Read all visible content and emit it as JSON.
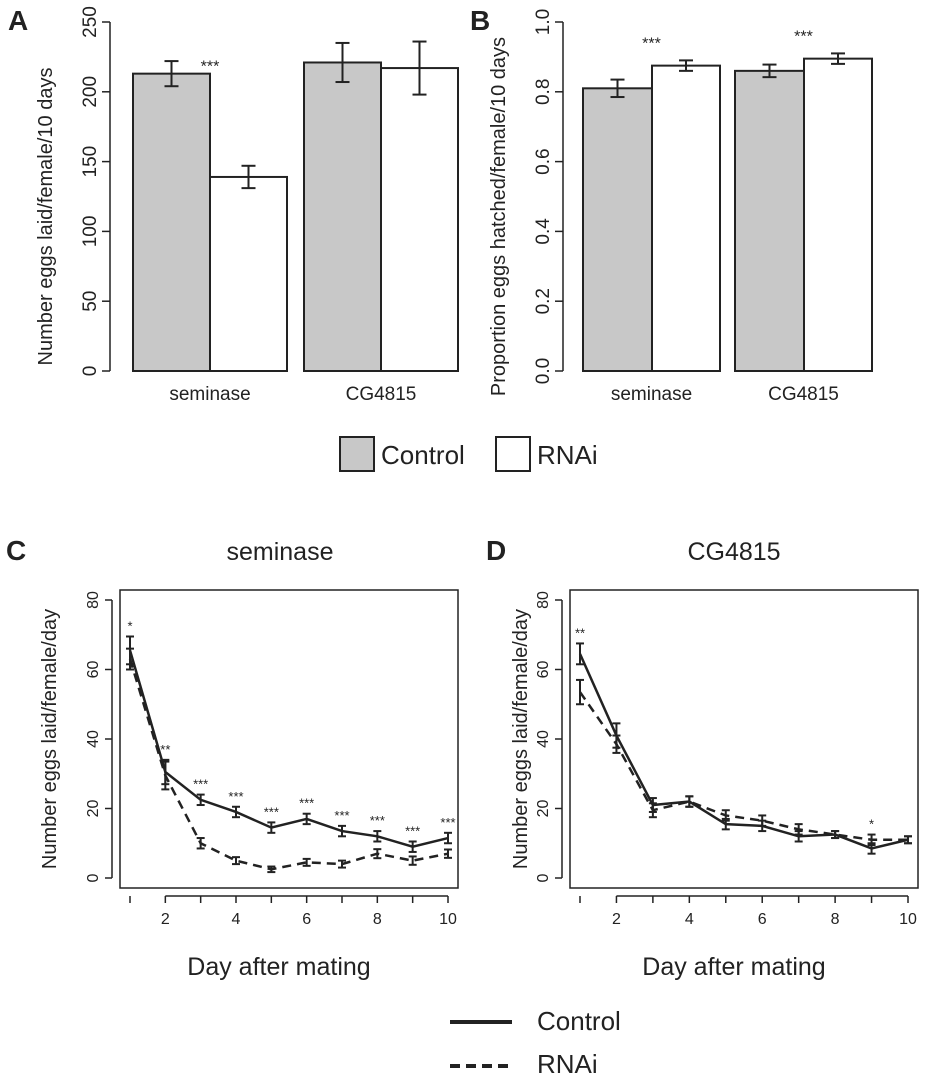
{
  "chart_data": [
    {
      "panel": "A",
      "type": "bar",
      "title": "",
      "xlabel": "",
      "ylabel": "Number eggs laid/female/10 days",
      "ylim": [
        0,
        250
      ],
      "yticks": [
        "0",
        "50",
        "100",
        "150",
        "200",
        "250"
      ],
      "categories": [
        "seminase",
        "CG4815"
      ],
      "series": [
        {
          "name": "Control",
          "values": [
            213,
            221
          ],
          "errors": [
            9,
            14
          ]
        },
        {
          "name": "RNAi",
          "values": [
            139,
            217
          ],
          "errors": [
            8,
            19
          ]
        }
      ],
      "annotations": [
        {
          "category": "seminase",
          "text": "***"
        }
      ]
    },
    {
      "panel": "B",
      "type": "bar",
      "title": "",
      "xlabel": "",
      "ylabel": "Proportion eggs hatched/female/10 days",
      "ylim": [
        0,
        1.0
      ],
      "yticks": [
        "0.0",
        "0.2",
        "0.4",
        "0.6",
        "0.8",
        "1.0"
      ],
      "categories": [
        "seminase",
        "CG4815"
      ],
      "series": [
        {
          "name": "Control",
          "values": [
            0.81,
            0.86
          ],
          "errors": [
            0.025,
            0.018
          ]
        },
        {
          "name": "RNAi",
          "values": [
            0.875,
            0.895
          ],
          "errors": [
            0.015,
            0.015
          ]
        }
      ],
      "annotations": [
        {
          "category": "seminase",
          "text": "***"
        },
        {
          "category": "CG4815",
          "text": "***"
        }
      ]
    },
    {
      "panel": "C",
      "type": "line",
      "title": "seminase",
      "xlabel": "Day after mating",
      "ylabel": "Number eggs laid/female/day",
      "xlim": [
        1,
        10
      ],
      "ylim": [
        0,
        80
      ],
      "xticks": [
        "2",
        "4",
        "6",
        "8",
        "10"
      ],
      "yticks": [
        "0",
        "20",
        "40",
        "60",
        "80"
      ],
      "x": [
        1,
        2,
        3,
        4,
        5,
        6,
        7,
        8,
        9,
        10
      ],
      "series": [
        {
          "name": "Control",
          "style": "solid",
          "values": [
            65.5,
            30.5,
            22.5,
            19,
            14.5,
            17,
            13.5,
            12,
            9,
            11.5
          ],
          "errors": [
            4,
            3.5,
            1.5,
            1.5,
            1.5,
            1.5,
            1.5,
            1.5,
            1.5,
            1.5
          ]
        },
        {
          "name": "RNAi",
          "style": "dashed",
          "values": [
            63,
            29.5,
            10,
            5,
            2.5,
            4.5,
            4,
            7,
            5,
            7
          ],
          "errors": [
            3,
            4,
            1.5,
            1,
            0.8,
            1,
            1,
            1.3,
            1.2,
            1.2
          ]
        }
      ],
      "annotations": [
        "*",
        "**",
        "***",
        "***",
        "***",
        "***",
        "***",
        "***",
        "***",
        "***"
      ]
    },
    {
      "panel": "D",
      "type": "line",
      "title": "CG4815",
      "xlabel": "Day after mating",
      "ylabel": "Number eggs laid/female/day",
      "xlim": [
        1,
        10
      ],
      "ylim": [
        0,
        80
      ],
      "xticks": [
        "2",
        "4",
        "6",
        "8",
        "10"
      ],
      "yticks": [
        "0",
        "20",
        "40",
        "60",
        "80"
      ],
      "x": [
        1,
        2,
        3,
        4,
        5,
        6,
        7,
        8,
        9,
        10
      ],
      "series": [
        {
          "name": "Control",
          "style": "solid",
          "values": [
            64.5,
            41,
            21,
            22,
            15.5,
            15,
            12,
            12.5,
            8.5,
            11
          ],
          "errors": [
            3,
            3.5,
            2,
            1.5,
            1.5,
            1.5,
            1.5,
            1,
            1.5,
            1
          ]
        },
        {
          "name": "RNAi",
          "style": "dashed",
          "values": [
            53.5,
            38.5,
            19.5,
            22,
            18,
            16.5,
            14,
            12.5,
            11,
            11
          ],
          "errors": [
            3.5,
            2.5,
            2,
            1.5,
            1.5,
            1.5,
            1.5,
            1,
            1.5,
            1
          ]
        }
      ],
      "annotations": [
        "**",
        "",
        "",
        "",
        "",
        "",
        "",
        "",
        "*",
        ""
      ]
    }
  ],
  "panel_labels": [
    "A",
    "B",
    "C",
    "D"
  ],
  "colors": {
    "control_fill": "#c8c8c8",
    "rnai_fill": "#ffffff",
    "stroke": "#222222"
  },
  "legend_bars": {
    "control": "Control",
    "rnai": "RNAi"
  },
  "legend_lines": {
    "control": "Control",
    "rnai": "RNAi"
  }
}
